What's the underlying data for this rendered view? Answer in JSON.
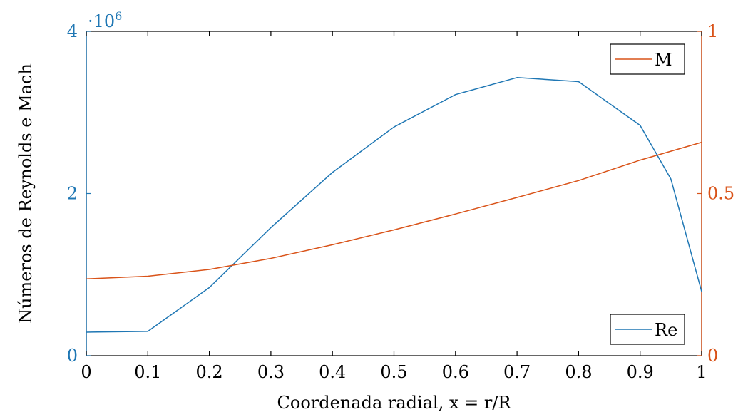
{
  "chart_data": {
    "type": "line",
    "xlabel": "Coordenada radial, x = r/R",
    "ylabel": "Números de Reynolds e Mach",
    "xlim": [
      0,
      1
    ],
    "x_ticks": [
      "0",
      "0.1",
      "0.2",
      "0.3",
      "0.4",
      "0.5",
      "0.6",
      "0.7",
      "0.8",
      "0.9",
      "1"
    ],
    "left_axis": {
      "ylim": [
        0,
        4000000
      ],
      "ticks": [
        "0",
        "2",
        "4"
      ],
      "scale_label_prefix": "·10",
      "scale_label_exponent": "6",
      "color": "#1f77b4"
    },
    "right_axis": {
      "ylim": [
        0,
        1
      ],
      "ticks": [
        "0",
        "0.5",
        "1"
      ],
      "color": "#d95319"
    },
    "series": [
      {
        "name": "Re",
        "axis": "left",
        "color": "#1f77b4",
        "legend_position": "bottom-right",
        "x": [
          0,
          0.1,
          0.2,
          0.3,
          0.4,
          0.5,
          0.6,
          0.7,
          0.8,
          0.9,
          0.95,
          1
        ],
        "y": [
          290000,
          300000,
          840000,
          1580000,
          2260000,
          2820000,
          3220000,
          3430000,
          3380000,
          2840000,
          2180000,
          790000
        ]
      },
      {
        "name": "M",
        "axis": "right",
        "color": "#d95319",
        "legend_position": "top-right",
        "x": [
          0,
          0.1,
          0.2,
          0.3,
          0.4,
          0.5,
          0.6,
          0.7,
          0.8,
          0.9,
          1
        ],
        "y": [
          0.237,
          0.245,
          0.266,
          0.3,
          0.342,
          0.388,
          0.437,
          0.488,
          0.54,
          0.603,
          0.658
        ]
      }
    ]
  }
}
